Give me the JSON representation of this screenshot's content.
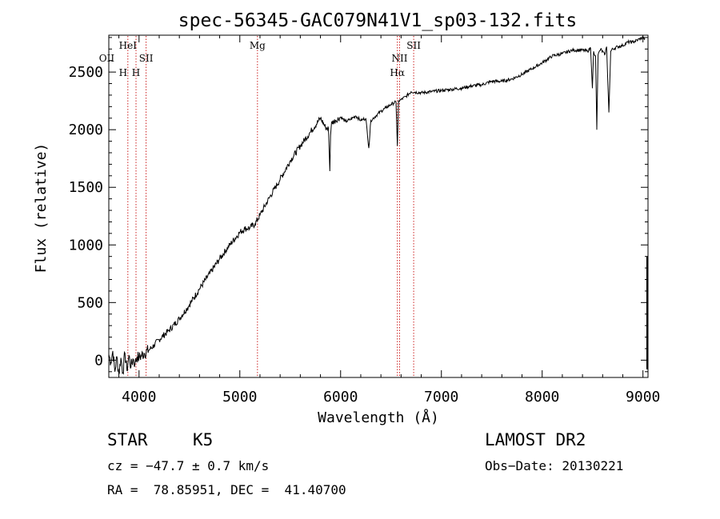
{
  "chart_data": {
    "type": "line",
    "title": "spec-56345-GAC079N41V1_sp03-132.fits",
    "xlabel": "Wavelength (Å)",
    "ylabel": "Flux (relative)",
    "xlim": [
      3700,
      9050
    ],
    "ylim": [
      -150,
      2820
    ],
    "x_ticks": [
      4000,
      5000,
      6000,
      7000,
      8000,
      9000
    ],
    "y_ticks": [
      0,
      500,
      1000,
      1500,
      2000,
      2500
    ],
    "x_tick_labels": [
      "4000",
      "5000",
      "6000",
      "7000",
      "8000",
      "9000"
    ],
    "y_tick_labels": [
      "0",
      "500",
      "1000",
      "1500",
      "2000",
      "2500"
    ],
    "line_color": "#000000",
    "marker_color": "#cc2222",
    "series": [
      {
        "x": [
          3700,
          3720,
          3740,
          3760,
          3780,
          3800,
          3820,
          3840,
          3860,
          3880,
          3900,
          3920,
          3940,
          3960,
          3980,
          4000,
          4050,
          4100,
          4150,
          4200,
          4300,
          4400,
          4500,
          4600,
          4700,
          4800,
          4900,
          5000,
          5050,
          5100,
          5150,
          5200,
          5300,
          5400,
          5500,
          5600,
          5700,
          5800,
          5850,
          5880,
          5893,
          5900,
          5910,
          5950,
          6000,
          6050,
          6100,
          6150,
          6200,
          6250,
          6280,
          6300,
          6350,
          6400,
          6450,
          6500,
          6550,
          6563,
          6575,
          6600,
          6650,
          6700,
          6800,
          6900,
          7000,
          7100,
          7200,
          7300,
          7400,
          7500,
          7600,
          7700,
          7800,
          7900,
          8000,
          8100,
          8200,
          8300,
          8400,
          8450,
          8480,
          8498,
          8510,
          8530,
          8542,
          8555,
          8580,
          8620,
          8640,
          8662,
          8680,
          8700,
          8750,
          8800,
          8850,
          8900,
          8950,
          9000,
          9020
        ],
        "y": [
          50,
          -20,
          80,
          -100,
          30,
          -120,
          20,
          -110,
          60,
          -90,
          40,
          -60,
          10,
          -30,
          30,
          20,
          60,
          90,
          130,
          180,
          260,
          360,
          480,
          620,
          750,
          880,
          1000,
          1110,
          1140,
          1150,
          1180,
          1260,
          1420,
          1570,
          1730,
          1860,
          1980,
          2100,
          2020,
          2010,
          1640,
          1950,
          2060,
          2080,
          2110,
          2070,
          2090,
          2120,
          2080,
          2100,
          1840,
          2080,
          2120,
          2160,
          2190,
          2220,
          2240,
          1860,
          2250,
          2260,
          2290,
          2330,
          2320,
          2330,
          2340,
          2350,
          2360,
          2380,
          2390,
          2420,
          2420,
          2440,
          2480,
          2530,
          2580,
          2640,
          2660,
          2690,
          2690,
          2680,
          2710,
          2360,
          2680,
          2640,
          2000,
          2650,
          2700,
          2650,
          2720,
          2150,
          2680,
          2700,
          2720,
          2730,
          2760,
          2760,
          2780,
          2800,
          2790
        ]
      }
    ],
    "line_markers": [
      {
        "name": "OII",
        "wavelength": 3727
      },
      {
        "name": "H",
        "wavelength": 3889
      },
      {
        "name": "HeI",
        "wavelength": 3889
      },
      {
        "name": "H",
        "wavelength": 3970
      },
      {
        "name": "SII",
        "wavelength": 4070
      },
      {
        "name": "Mg",
        "wavelength": 5175
      },
      {
        "name": "NII",
        "wavelength": 6585
      },
      {
        "name": "Hα",
        "wavelength": 6563
      },
      {
        "name": "SII",
        "wavelength": 6725
      }
    ]
  },
  "info": {
    "object_class": "STAR",
    "subclass": "K5",
    "survey": "LAMOST DR2",
    "cz": "cz = −47.7 ± 0.7 km/s",
    "obs_date": "Obs−Date: 20130221",
    "coords": "RA =  78.85951, DEC =  41.40700"
  }
}
